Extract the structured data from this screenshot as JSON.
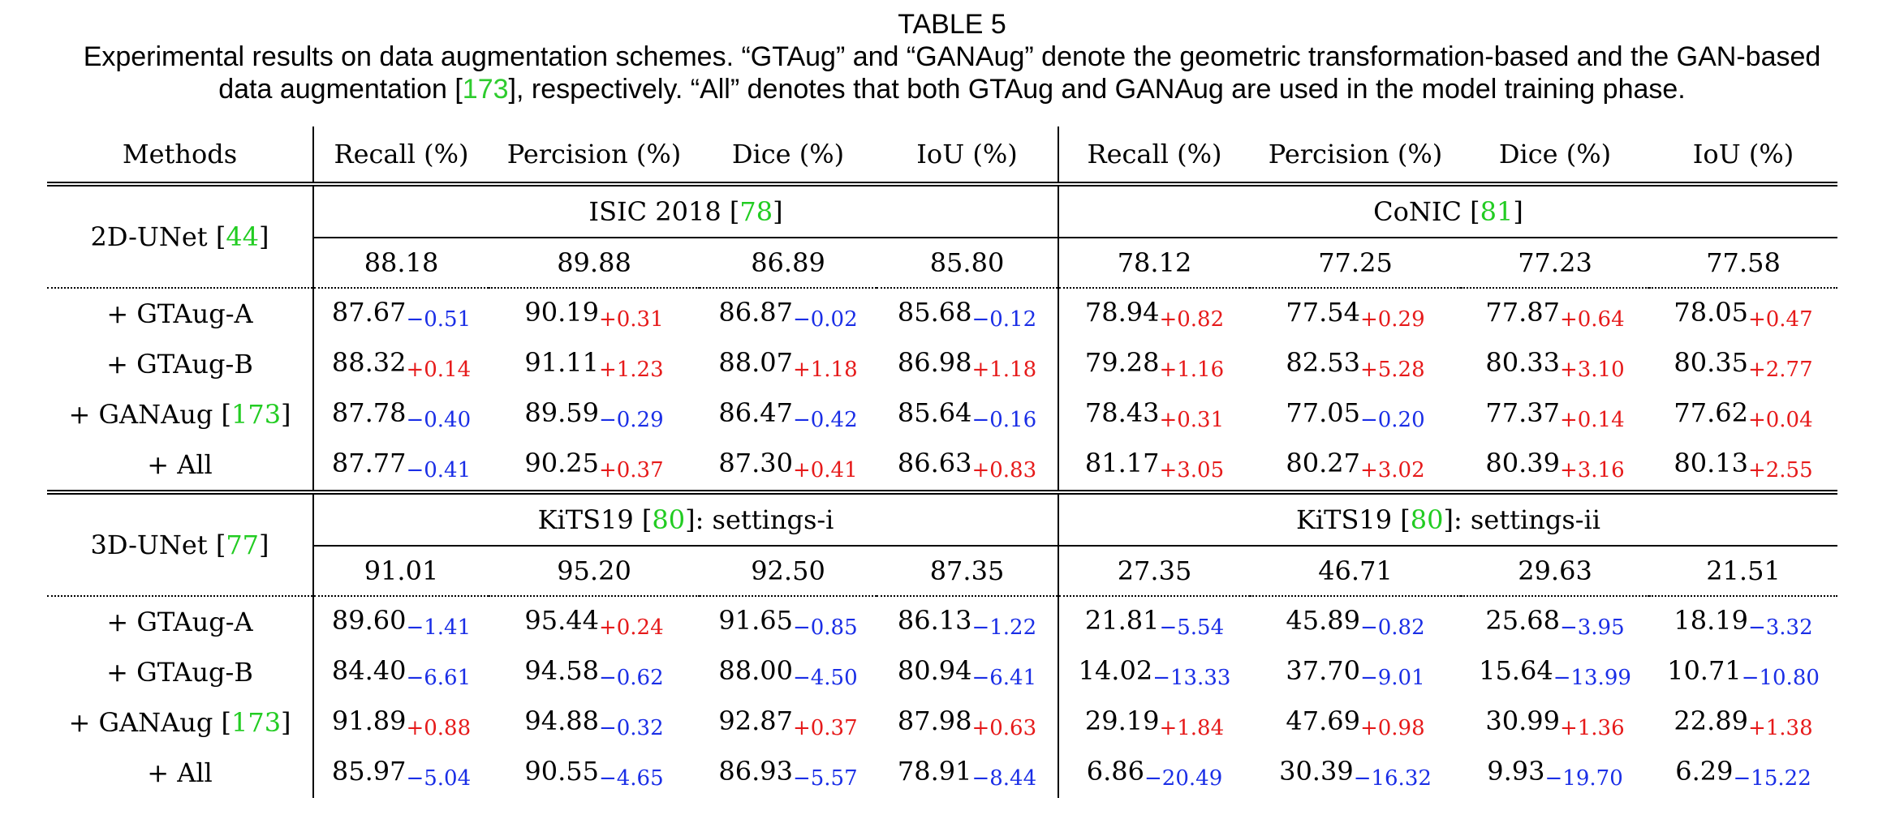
{
  "caption": {
    "title": "TABLE 5",
    "line1": "Experimental results on data augmentation schemes. “GTAug” and “GANAug” denote the geometric transformation-based and the GAN-based",
    "line2_a": "data augmentation [",
    "line2_ref": "173",
    "line2_b": "], respectively. “All” denotes that both GTAug and GANAug are used in the model training phase."
  },
  "header": {
    "methods": "Methods",
    "cols": [
      "Recall (%)",
      "Percision (%)",
      "Dice (%)",
      "IoU (%)",
      "Recall (%)",
      "Percision (%)",
      "Dice (%)",
      "IoU (%)"
    ]
  },
  "blocks": [
    {
      "model": "2D-UNet [",
      "model_ref": "44",
      "model_close": "]",
      "datasets": [
        {
          "name_a": "ISIC 2018 [",
          "ref": "78",
          "name_b": "]"
        },
        {
          "name_a": "CoNIC [",
          "ref": "81",
          "name_b": "]"
        }
      ],
      "baseline": [
        "88.18",
        "89.88",
        "86.89",
        "85.80",
        "78.12",
        "77.25",
        "77.23",
        "77.58"
      ],
      "rows": [
        {
          "method": "+ GTAug-A",
          "ref": "",
          "vals": [
            [
              "87.67",
              "−0.51",
              "neg"
            ],
            [
              "90.19",
              "+0.31",
              "pos"
            ],
            [
              "86.87",
              "−0.02",
              "neg"
            ],
            [
              "85.68",
              "−0.12",
              "neg"
            ],
            [
              "78.94",
              "+0.82",
              "pos"
            ],
            [
              "77.54",
              "+0.29",
              "pos"
            ],
            [
              "77.87",
              "+0.64",
              "pos"
            ],
            [
              "78.05",
              "+0.47",
              "pos"
            ]
          ]
        },
        {
          "method": "+ GTAug-B",
          "ref": "",
          "vals": [
            [
              "88.32",
              "+0.14",
              "pos"
            ],
            [
              "91.11",
              "+1.23",
              "pos"
            ],
            [
              "88.07",
              "+1.18",
              "pos"
            ],
            [
              "86.98",
              "+1.18",
              "pos"
            ],
            [
              "79.28",
              "+1.16",
              "pos"
            ],
            [
              "82.53",
              "+5.28",
              "pos"
            ],
            [
              "80.33",
              "+3.10",
              "pos"
            ],
            [
              "80.35",
              "+2.77",
              "pos"
            ]
          ]
        },
        {
          "method": "+ GANAug [",
          "ref": "173",
          "vals": [
            [
              "87.78",
              "−0.40",
              "neg"
            ],
            [
              "89.59",
              "−0.29",
              "neg"
            ],
            [
              "86.47",
              "−0.42",
              "neg"
            ],
            [
              "85.64",
              "−0.16",
              "neg"
            ],
            [
              "78.43",
              "+0.31",
              "pos"
            ],
            [
              "77.05",
              "−0.20",
              "neg"
            ],
            [
              "77.37",
              "+0.14",
              "pos"
            ],
            [
              "77.62",
              "+0.04",
              "pos"
            ]
          ]
        },
        {
          "method": "+ All",
          "ref": "",
          "vals": [
            [
              "87.77",
              "−0.41",
              "neg"
            ],
            [
              "90.25",
              "+0.37",
              "pos"
            ],
            [
              "87.30",
              "+0.41",
              "pos"
            ],
            [
              "86.63",
              "+0.83",
              "pos"
            ],
            [
              "81.17",
              "+3.05",
              "pos"
            ],
            [
              "80.27",
              "+3.02",
              "pos"
            ],
            [
              "80.39",
              "+3.16",
              "pos"
            ],
            [
              "80.13",
              "+2.55",
              "pos"
            ]
          ]
        }
      ]
    },
    {
      "model": "3D-UNet [",
      "model_ref": "77",
      "model_close": "]",
      "datasets": [
        {
          "name_a": "KiTS19 [",
          "ref": "80",
          "name_b": "]: settings-i"
        },
        {
          "name_a": "KiTS19 [",
          "ref": "80",
          "name_b": "]: settings-ii"
        }
      ],
      "baseline": [
        "91.01",
        "95.20",
        "92.50",
        "87.35",
        "27.35",
        "46.71",
        "29.63",
        "21.51"
      ],
      "rows": [
        {
          "method": "+ GTAug-A",
          "ref": "",
          "vals": [
            [
              "89.60",
              "−1.41",
              "neg"
            ],
            [
              "95.44",
              "+0.24",
              "pos"
            ],
            [
              "91.65",
              "−0.85",
              "neg"
            ],
            [
              "86.13",
              "−1.22",
              "neg"
            ],
            [
              "21.81",
              "−5.54",
              "neg"
            ],
            [
              "45.89",
              "−0.82",
              "neg"
            ],
            [
              "25.68",
              "−3.95",
              "neg"
            ],
            [
              "18.19",
              "−3.32",
              "neg"
            ]
          ]
        },
        {
          "method": "+ GTAug-B",
          "ref": "",
          "vals": [
            [
              "84.40",
              "−6.61",
              "neg"
            ],
            [
              "94.58",
              "−0.62",
              "neg"
            ],
            [
              "88.00",
              "−4.50",
              "neg"
            ],
            [
              "80.94",
              "−6.41",
              "neg"
            ],
            [
              "14.02",
              "−13.33",
              "neg"
            ],
            [
              "37.70",
              "−9.01",
              "neg"
            ],
            [
              "15.64",
              "−13.99",
              "neg"
            ],
            [
              "10.71",
              "−10.80",
              "neg"
            ]
          ]
        },
        {
          "method": "+ GANAug [",
          "ref": "173",
          "vals": [
            [
              "91.89",
              "+0.88",
              "pos"
            ],
            [
              "94.88",
              "−0.32",
              "neg"
            ],
            [
              "92.87",
              "+0.37",
              "pos"
            ],
            [
              "87.98",
              "+0.63",
              "pos"
            ],
            [
              "29.19",
              "+1.84",
              "pos"
            ],
            [
              "47.69",
              "+0.98",
              "pos"
            ],
            [
              "30.99",
              "+1.36",
              "pos"
            ],
            [
              "22.89",
              "+1.38",
              "pos"
            ]
          ]
        },
        {
          "method": "+ All",
          "ref": "",
          "vals": [
            [
              "85.97",
              "−5.04",
              "neg"
            ],
            [
              "90.55",
              "−4.65",
              "neg"
            ],
            [
              "86.93",
              "−5.57",
              "neg"
            ],
            [
              "78.91",
              "−8.44",
              "neg"
            ],
            [
              "6.86",
              "−20.49",
              "neg"
            ],
            [
              "30.39",
              "−16.32",
              "neg"
            ],
            [
              "9.93",
              "−19.70",
              "neg"
            ],
            [
              "6.29",
              "−15.22",
              "neg"
            ]
          ]
        }
      ]
    }
  ],
  "colors": {
    "ref": "#22cc22",
    "negative_delta": "#1a2ee6",
    "positive_delta": "#e61a1a"
  }
}
